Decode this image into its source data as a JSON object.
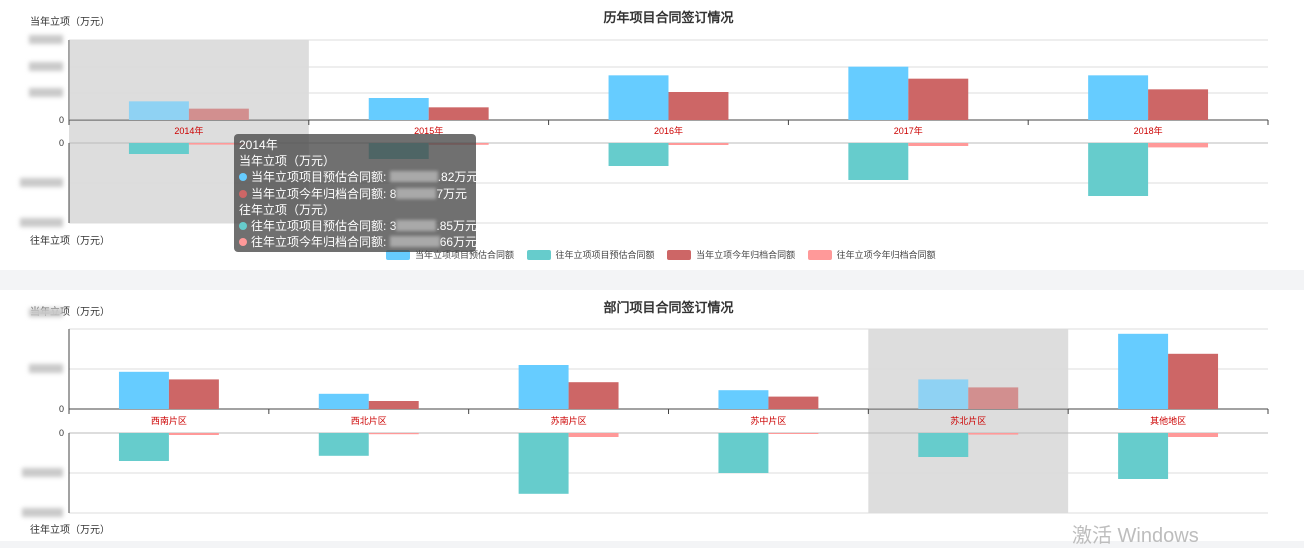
{
  "colors": {
    "current_est": "#66ccff",
    "previous_est": "#66cccc",
    "current_archive": "#cd6666",
    "previous_archive": "#ff9999",
    "category_label": "#cc0000",
    "highlight": "#dddddd"
  },
  "chart_data": [
    {
      "type": "bar",
      "title": "历年项目合同签订情况",
      "top_axis_label": "当年立项（万元）",
      "bottom_axis_label": "往年立项（万元）",
      "categories": [
        "2014年",
        "2015年",
        "2016年",
        "2017年",
        "2018年"
      ],
      "top_ticks": [
        "0"
      ],
      "bottom_ticks": [
        "0"
      ],
      "top_max": 6000,
      "bottom_max": 4000,
      "highlight_category": "2014年",
      "top_series": [
        {
          "name": "当年立项项目预估合同额",
          "color_key": "current_est",
          "values": [
            1400,
            1650,
            3350,
            4000,
            3350
          ]
        },
        {
          "name": "当年立项今年归档合同额",
          "color_key": "current_archive",
          "values": [
            850,
            950,
            2100,
            3100,
            2300
          ]
        }
      ],
      "bottom_series": [
        {
          "name": "往年立项项目预估合同额",
          "color_key": "previous_est",
          "values": [
            550,
            800,
            1150,
            1850,
            2650
          ]
        },
        {
          "name": "往年立项今年归档合同额",
          "color_key": "previous_archive",
          "values": [
            80,
            90,
            100,
            150,
            220
          ]
        }
      ],
      "legend": [
        "当年立项项目预估合同额",
        "往年立项项目预估合同额",
        "当年立项今年归档合同额",
        "往年立项今年归档合同额"
      ]
    },
    {
      "type": "bar",
      "title": "部门项目合同签订情况",
      "top_axis_label": "当年立项（万元）",
      "bottom_axis_label": "往年立项（万元）",
      "categories": [
        "西南片区",
        "西北片区",
        "苏南片区",
        "苏中片区",
        "苏北片区",
        "其他地区"
      ],
      "top_ticks": [
        "0"
      ],
      "bottom_ticks": [
        "0"
      ],
      "top_max": 2000,
      "bottom_max": 2000,
      "highlight_category": "苏北片区",
      "top_series": [
        {
          "name": "当年立项项目预估合同额",
          "color_key": "current_est",
          "values": [
            930,
            380,
            1100,
            470,
            740,
            1880
          ]
        },
        {
          "name": "当年立项今年归档合同额",
          "color_key": "current_archive",
          "values": [
            740,
            200,
            670,
            310,
            540,
            1380
          ]
        }
      ],
      "bottom_series": [
        {
          "name": "往年立项项目预估合同额",
          "color_key": "previous_est",
          "values": [
            700,
            570,
            1520,
            1000,
            600,
            1150
          ]
        },
        {
          "name": "往年立项今年归档合同额",
          "color_key": "previous_archive",
          "values": [
            50,
            30,
            100,
            25,
            40,
            100
          ]
        }
      ]
    }
  ],
  "tooltip": {
    "header": "2014年",
    "current_group": "当年立项（万元）",
    "current_est_label": "当年立项项目预估合同额:",
    "current_est_suffix": ".82万元",
    "current_archive_label": "当年立项今年归档合同额:",
    "current_archive_prefix": "8",
    "current_archive_suffix": "7万元",
    "previous_group": "往年立项（万元）",
    "previous_est_label": "往年立项项目预估合同额:",
    "previous_est_prefix": "3",
    "previous_est_suffix": ".85万元",
    "previous_archive_label": "往年立项今年归档合同额:",
    "previous_archive_suffix": "66万元"
  },
  "watermark": "激活 Windows"
}
